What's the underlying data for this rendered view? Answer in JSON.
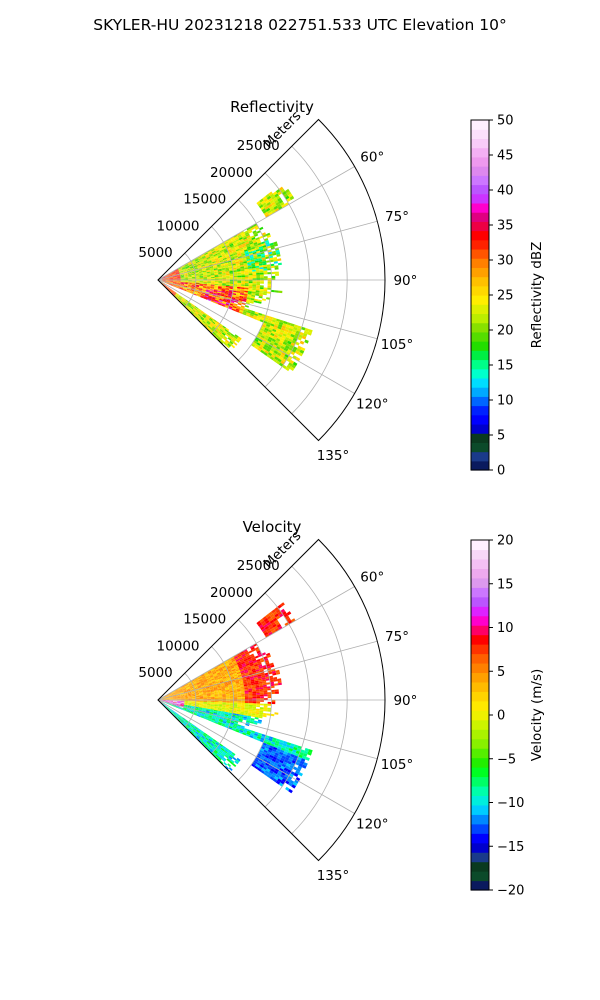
{
  "figure": {
    "title": "SKYLER-HU  20231218  022751.533 UTC Elevation 10°"
  },
  "chart_data": [
    {
      "type": "heatmap",
      "projection": "polar-sector",
      "title": "Reflectivity",
      "radial_axis_label": "Meters",
      "radial_ticks": [
        "5000",
        "10000",
        "15000",
        "20000",
        "25000"
      ],
      "angular_ticks": [
        "60°",
        "75°",
        "90°",
        "105°",
        "120°",
        "135°"
      ],
      "azimuth_range_deg": [
        45,
        135
      ],
      "range_max_m": 30000,
      "grid": true,
      "colorbar": {
        "label": "Reflectivity dBZ",
        "range": [
          0,
          50
        ],
        "ticks": [
          "0",
          "5",
          "10",
          "15",
          "20",
          "25",
          "30",
          "35",
          "40",
          "45",
          "50"
        ],
        "colors": [
          "#0a1a5e",
          "#1a3a8a",
          "#0b4a2a",
          "#0a3a1f",
          "#0000cc",
          "#0000ff",
          "#0022ff",
          "#0066ff",
          "#00aaff",
          "#00ddff",
          "#00ffcc",
          "#00ff88",
          "#00ee44",
          "#22dd00",
          "#55dd00",
          "#88e000",
          "#bbee00",
          "#ddf000",
          "#ffee00",
          "#ffd800",
          "#ffc000",
          "#ffa000",
          "#ff8000",
          "#ff5500",
          "#ff2200",
          "#ff0000",
          "#ee0044",
          "#e00080",
          "#ff00cc",
          "#cc33ff",
          "#bb55ff",
          "#cc77ff",
          "#dd88ee",
          "#ee99ee",
          "#f4b0f4",
          "#f8ccf8",
          "#fce0fc",
          "#fff0ff"
        ]
      },
      "data_description": "Radar echo field mostly 15–30 dBZ with local cores of 30–40 dBZ near 95–115° azimuth."
    },
    {
      "type": "heatmap",
      "projection": "polar-sector",
      "title": "Velocity",
      "radial_axis_label": "Meters",
      "radial_ticks": [
        "5000",
        "10000",
        "15000",
        "20000",
        "25000"
      ],
      "angular_ticks": [
        "60°",
        "75°",
        "90°",
        "105°",
        "120°",
        "135°"
      ],
      "azimuth_range_deg": [
        45,
        135
      ],
      "range_max_m": 30000,
      "grid": true,
      "colorbar": {
        "label": "Velocity (m/s)",
        "range": [
          -20,
          20
        ],
        "ticks": [
          "−20",
          "−15",
          "−10",
          "−5",
          "0",
          "5",
          "10",
          "15",
          "20"
        ],
        "colors": [
          "#0a1a5e",
          "#0b4a2a",
          "#0a3a1f",
          "#1a3a8a",
          "#0000cc",
          "#0000ff",
          "#0044ff",
          "#0088ff",
          "#00ccff",
          "#00eedd",
          "#00ffaa",
          "#00ff66",
          "#00ff22",
          "#22ee00",
          "#55ee00",
          "#88f000",
          "#aaf200",
          "#ccf400",
          "#eef000",
          "#ffe800",
          "#ffd400",
          "#ffbb00",
          "#ffa000",
          "#ff8000",
          "#ff6000",
          "#ff3300",
          "#ff0000",
          "#ff0066",
          "#ff00cc",
          "#dd22ff",
          "#bb55ff",
          "#cc77ff",
          "#dd99ee",
          "#eeaaee",
          "#f4c0f4",
          "#f8d8f8",
          "#fff0ff"
        ]
      },
      "data_description": "Radial velocities mostly 0 to +10 m/s in the northern half (warm colors) and −5 to −15 m/s in the southern half (green/cyan)."
    }
  ]
}
